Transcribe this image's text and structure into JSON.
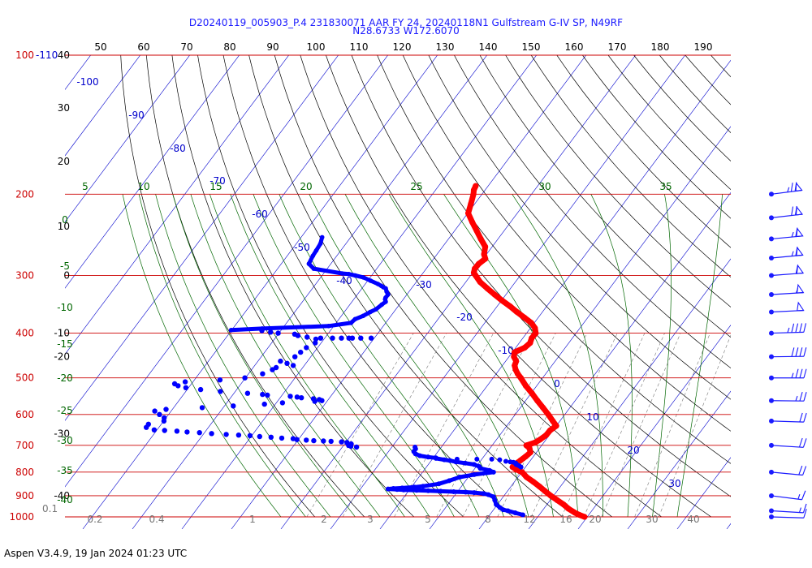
{
  "title_line1": "D20240119_005903_P.4 231830071 AAR FY 24, 20240118N1 Gulfstream G-IV SP, N49RF",
  "title_line2": "N28.6733 W172.6070",
  "footer": "Aspen V3.4.9, 19 Jan 2024  01:23 UTC",
  "colors": {
    "isobar": "#cc0000",
    "isotherm": "#0000cc",
    "dry_adiabat": "#000000",
    "moist_adiabat": "#006600",
    "mixing_ratio": "#777777",
    "temperature": "#ff0000",
    "dewpoint": "#0000ff",
    "barb": "#1a1aff"
  },
  "chart_data": {
    "type": "skew-t log-p",
    "pressure_axis": {
      "min": 100,
      "max": 1000,
      "scale": "log",
      "ticks": [
        "100",
        "200",
        "300",
        "400",
        "500",
        "600",
        "700",
        "800",
        "900",
        "1000"
      ],
      "extra_top_label": "-110",
      "corner_label": "0.1"
    },
    "height_labels": [
      "40",
      "30",
      "20",
      "10",
      "0",
      "-10",
      "-20",
      "-30",
      "-40"
    ],
    "theta_top_labels": [
      "50",
      "60",
      "70",
      "80",
      "90",
      "100",
      "110",
      "120",
      "130",
      "140",
      "150",
      "160",
      "170",
      "180",
      "190"
    ],
    "isotherm_labels": [
      "-100",
      "-90",
      "-80",
      "-70",
      "-60",
      "-50",
      "-40",
      "-30",
      "-20",
      "-10",
      "0",
      "10",
      "20",
      "30"
    ],
    "moist_adiabat_labels": {
      "top": [
        "5",
        "10",
        "15",
        "20",
        "25",
        "30",
        "35"
      ],
      "left": [
        "0",
        "-5",
        "-10",
        "-15",
        "-20",
        "-25",
        "-30",
        "-35",
        "-40"
      ]
    },
    "mixing_ratio_labels": [
      "0.2",
      "0.4",
      "1",
      "2",
      "3",
      "5",
      "8",
      "12",
      "16",
      "20",
      "30",
      "40"
    ],
    "temperature_profile": [
      [
        192,
        -55.5
      ],
      [
        196,
        -55.2
      ],
      [
        200,
        -54.6
      ],
      [
        210,
        -53.5
      ],
      [
        220,
        -52.5
      ],
      [
        230,
        -50.2
      ],
      [
        240,
        -47.9
      ],
      [
        250,
        -45.7
      ],
      [
        260,
        -43.5
      ],
      [
        270,
        -42.5
      ],
      [
        276,
        -41.5
      ],
      [
        283,
        -42.0
      ],
      [
        290,
        -42.0
      ],
      [
        296,
        -41.5
      ],
      [
        300,
        -40.7
      ],
      [
        310,
        -38.7
      ],
      [
        320,
        -36.2
      ],
      [
        330,
        -33.7
      ],
      [
        340,
        -31.2
      ],
      [
        350,
        -28.6
      ],
      [
        360,
        -26.3
      ],
      [
        370,
        -23.9
      ],
      [
        380,
        -21.6
      ],
      [
        390,
        -20.0
      ],
      [
        400,
        -19.0
      ],
      [
        410,
        -19.0
      ],
      [
        420,
        -18.5
      ],
      [
        430,
        -18.8
      ],
      [
        440,
        -20.1
      ],
      [
        450,
        -19.5
      ],
      [
        460,
        -18.3
      ],
      [
        470,
        -17.9
      ],
      [
        480,
        -17.0
      ],
      [
        490,
        -15.9
      ],
      [
        500,
        -14.6
      ],
      [
        520,
        -12.3
      ],
      [
        540,
        -9.8
      ],
      [
        560,
        -7.5
      ],
      [
        580,
        -5.2
      ],
      [
        600,
        -3.0
      ],
      [
        620,
        -1.0
      ],
      [
        635,
        0.5
      ],
      [
        650,
        0.0
      ],
      [
        665,
        0.0
      ],
      [
        680,
        -0.5
      ],
      [
        690,
        -1.0
      ],
      [
        700,
        -2.3
      ],
      [
        710,
        -1.2
      ],
      [
        725,
        -0.3
      ],
      [
        740,
        -0.6
      ],
      [
        755,
        -1.0
      ],
      [
        770,
        -1.5
      ],
      [
        780,
        -1.5
      ],
      [
        790,
        -0.3
      ],
      [
        800,
        1.3
      ],
      [
        820,
        3.0
      ],
      [
        840,
        5.2
      ],
      [
        860,
        7.2
      ],
      [
        880,
        9.1
      ],
      [
        900,
        11.0
      ],
      [
        920,
        13.0
      ],
      [
        940,
        15.0
      ],
      [
        960,
        16.7
      ],
      [
        980,
        18.7
      ],
      [
        990,
        19.9
      ],
      [
        1000,
        21.3
      ]
    ],
    "dewpoint_profile": [
      [
        248,
        -78.0
      ],
      [
        256,
        -77.3
      ],
      [
        265,
        -77.0
      ],
      [
        272,
        -76.8
      ],
      [
        283,
        -76.3
      ],
      [
        290,
        -74.5
      ],
      [
        297,
        -68.0
      ],
      [
        298,
        -66.5
      ],
      [
        300,
        -65.0
      ],
      [
        303,
        -63.0
      ],
      [
        308,
        -61.0
      ],
      [
        313,
        -59.0
      ],
      [
        316,
        -58.0
      ],
      [
        318,
        -57.4
      ],
      [
        320,
        -56.7
      ],
      [
        325,
        -56.0
      ],
      [
        330,
        -55.2
      ],
      [
        335,
        -55.2
      ],
      [
        338,
        -55.0
      ],
      [
        342,
        -54.5
      ],
      [
        347,
        -54.8
      ],
      [
        355,
        -55.2
      ],
      [
        360,
        -55.9
      ],
      [
        367,
        -56.7
      ],
      [
        373,
        -57.8
      ],
      [
        380,
        -58.0
      ],
      [
        386,
        -62.0
      ],
      [
        391,
        -75.0
      ],
      [
        394,
        -81.0
      ]
    ],
    "dewpoint_scatter": [
      [
        395,
        -74.7
      ],
      [
        398,
        -72.7
      ],
      [
        400,
        -71.0
      ],
      [
        402,
        -67.5
      ],
      [
        405,
        -66.6
      ],
      [
        408,
        -64.5
      ],
      [
        410,
        -61.6
      ],
      [
        410,
        -59.2
      ],
      [
        410,
        -57.4
      ],
      [
        410,
        -55.9
      ],
      [
        410,
        -55.2
      ],
      [
        410,
        -53.5
      ],
      [
        410,
        -51.4
      ],
      [
        412,
        -62.4
      ],
      [
        420,
        -61.9
      ],
      [
        430,
        -62.9
      ],
      [
        440,
        -63.3
      ],
      [
        450,
        -63.7
      ],
      [
        460,
        -65.9
      ],
      [
        465,
        -64.2
      ],
      [
        470,
        -62.6
      ],
      [
        475,
        -65.7
      ],
      [
        480,
        -66.1
      ],
      [
        490,
        -67.4
      ],
      [
        500,
        -70.3
      ],
      [
        505,
        -75.0
      ],
      [
        510,
        -81.7
      ],
      [
        515,
        -83.5
      ],
      [
        520,
        -82.5
      ],
      [
        525,
        -80.6
      ],
      [
        530,
        -77.3
      ],
      [
        535,
        -73.0
      ],
      [
        540,
        -67.2
      ],
      [
        543,
        -64.0
      ],
      [
        545,
        -62.9
      ],
      [
        548,
        -58.1
      ],
      [
        550,
        -56.6
      ],
      [
        552,
        -55.6
      ],
      [
        555,
        -53.0
      ],
      [
        557,
        -51.7
      ],
      [
        560,
        -51.0
      ],
      [
        562,
        -52.3
      ],
      [
        566,
        -58.6
      ],
      [
        570,
        -62.0
      ],
      [
        575,
        -68.0
      ],
      [
        580,
        -74.0
      ],
      [
        585,
        -81.0
      ],
      [
        590,
        -83.0
      ],
      [
        600,
        -81.5
      ],
      [
        610,
        -80.0
      ],
      [
        620,
        -79.5
      ],
      [
        630,
        -82.1
      ],
      [
        640,
        -82.0
      ],
      [
        648,
        -80.0
      ],
      [
        650,
        -77.8
      ],
      [
        652,
        -75.2
      ],
      [
        655,
        -73.0
      ],
      [
        657,
        -70.4
      ],
      [
        660,
        -67.8
      ],
      [
        663,
        -64.7
      ],
      [
        665,
        -62.1
      ],
      [
        667,
        -59.7
      ],
      [
        670,
        -57.6
      ],
      [
        672,
        -55.2
      ],
      [
        675,
        -52.9
      ],
      [
        677,
        -50.5
      ],
      [
        680,
        -49.6
      ],
      [
        682,
        -47.6
      ],
      [
        684,
        -46.0
      ],
      [
        685,
        -44.0
      ],
      [
        686,
        -42.4
      ],
      [
        688,
        -40.2
      ],
      [
        690,
        -39.0
      ],
      [
        695,
        -37.9
      ],
      [
        700,
        -38.2
      ],
      [
        703,
        -37.6
      ],
      [
        706,
        -36.3
      ]
    ],
    "dewpoint_lower": [
      [
        706,
        -24.5
      ],
      [
        712,
        -24.1
      ],
      [
        722,
        -24.0
      ],
      [
        730,
        -23.3
      ],
      [
        737,
        -22.1
      ],
      [
        742,
        -20.2
      ],
      [
        745,
        -18.5
      ],
      [
        747,
        -18.4
      ],
      [
        752,
        -16.5
      ],
      [
        755,
        -15.2
      ],
      [
        760,
        -13.8
      ],
      [
        765,
        -11.7
      ],
      [
        770,
        -9.7
      ],
      [
        778,
        -8.3
      ],
      [
        785,
        -7.8
      ],
      [
        793,
        -5.6
      ],
      [
        800,
        -4.5
      ],
      [
        810,
        -8.0
      ],
      [
        820,
        -10.5
      ],
      [
        835,
        -12.0
      ],
      [
        848,
        -13.6
      ],
      [
        858,
        -16.4
      ],
      [
        862,
        -18.0
      ],
      [
        866,
        -20.3
      ],
      [
        868,
        -22.0
      ],
      [
        870,
        -23.0
      ],
      [
        872,
        -21.1
      ],
      [
        874,
        -19.7
      ],
      [
        876,
        -17.0
      ],
      [
        878,
        -14.6
      ],
      [
        880,
        -12.0
      ],
      [
        882,
        -9.3
      ],
      [
        884,
        -6.8
      ],
      [
        886,
        -5.0
      ],
      [
        890,
        -3.0
      ],
      [
        895,
        -1.8
      ],
      [
        905,
        -0.4
      ],
      [
        920,
        0.4
      ],
      [
        940,
        1.4
      ],
      [
        955,
        2.7
      ],
      [
        965,
        3.7
      ],
      [
        970,
        4.8
      ],
      [
        980,
        6.6
      ],
      [
        990,
        8.5
      ]
    ],
    "dewpoint_lower_scatter": [
      [
        750,
        -14.0
      ],
      [
        750,
        -10.0
      ],
      [
        750,
        -7.0
      ],
      [
        752,
        -5.3
      ],
      [
        758,
        -3.8
      ],
      [
        760,
        -2.8
      ],
      [
        762,
        -2.1
      ],
      [
        765,
        -1.5
      ],
      [
        770,
        -1.2
      ],
      [
        772,
        -0.8
      ],
      [
        776,
        -0.3
      ],
      [
        780,
        0.2
      ]
    ],
    "wind_barbs": [
      {
        "p": 200,
        "wd": 250,
        "ws": 75
      },
      {
        "p": 225,
        "wd": 252,
        "ws": 70
      },
      {
        "p": 250,
        "wd": 255,
        "ws": 68
      },
      {
        "p": 275,
        "wd": 255,
        "ws": 65
      },
      {
        "p": 300,
        "wd": 258,
        "ws": 60
      },
      {
        "p": 330,
        "wd": 260,
        "ws": 55
      },
      {
        "p": 360,
        "wd": 262,
        "ws": 50
      },
      {
        "p": 400,
        "wd": 265,
        "ws": 45
      },
      {
        "p": 450,
        "wd": 268,
        "ws": 40
      },
      {
        "p": 500,
        "wd": 270,
        "ws": 35
      },
      {
        "p": 560,
        "wd": 272,
        "ws": 25
      },
      {
        "p": 620,
        "wd": 275,
        "ws": 20
      },
      {
        "p": 700,
        "wd": 280,
        "ws": 20
      },
      {
        "p": 800,
        "wd": 285,
        "ws": 22
      },
      {
        "p": 900,
        "wd": 290,
        "ws": 18
      },
      {
        "p": 970,
        "wd": 280,
        "ws": 15
      },
      {
        "p": 1000,
        "wd": 275,
        "ws": 10
      }
    ]
  }
}
